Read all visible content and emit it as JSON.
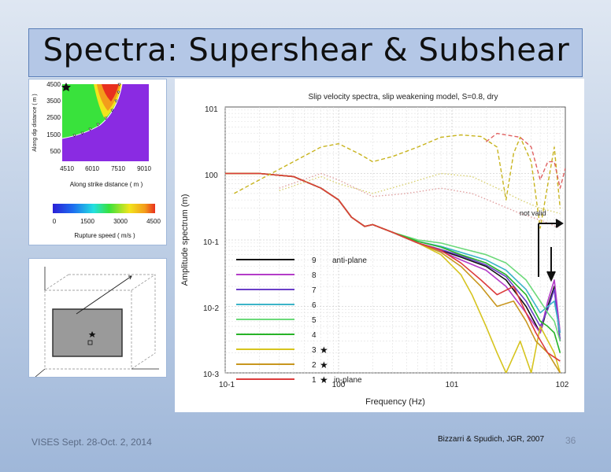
{
  "slide": {
    "title": "Spectra: Supershear & Subshear",
    "footer_left": "VISES Sept. 28-Oct. 2, 2014",
    "footer_right": "Bizzarri & Spudich, JGR, 2007",
    "page_number": "36"
  },
  "inset_map": {
    "ylabel": "Along dip distance ( m )",
    "xlabel": "Along strike distance ( m )",
    "yticks": [
      "4500",
      "3500",
      "2500",
      "1500",
      "500"
    ],
    "xticks": [
      "4510",
      "6010",
      "7510",
      "9010"
    ],
    "colorbar_label": "Rupture speed ( m/s )",
    "colorbar_ticks": [
      "0",
      "1500",
      "3000",
      "4500"
    ],
    "colors": {
      "purple": "#8a2be2",
      "green": "#39e23c",
      "yellow": "#f2e41c",
      "orange": "#f39c1b",
      "red": "#e8301e"
    }
  },
  "chart_data": {
    "type": "line",
    "title": "Slip velocity spectra, slip weakening model, S=0.8, dry",
    "xlabel": "Frequency (Hz)",
    "ylabel": "Amplitude spectrum (m)",
    "xscale": "log",
    "yscale": "log",
    "xlim": [
      0.1,
      100
    ],
    "ylim": [
      0.001,
      10
    ],
    "xtick_labels": [
      "10-1",
      "100",
      "101",
      "102"
    ],
    "ytick_labels": [
      "101",
      "100",
      "10-1",
      "10-2",
      "10-3"
    ],
    "grid": true,
    "annotation": "not valid",
    "legend_location": "lower-left",
    "legend": [
      {
        "label": "9",
        "suffix": "anti-plane",
        "star": false,
        "color": "#111111"
      },
      {
        "label": "8",
        "suffix": "",
        "star": false,
        "color": "#b43cc8"
      },
      {
        "label": "7",
        "suffix": "",
        "star": false,
        "color": "#6a3fc8"
      },
      {
        "label": "6",
        "suffix": "",
        "star": false,
        "color": "#3cb4c8"
      },
      {
        "label": "5",
        "suffix": "",
        "star": false,
        "color": "#6cd97a"
      },
      {
        "label": "4",
        "suffix": "",
        "star": false,
        "color": "#28b428"
      },
      {
        "label": "3",
        "suffix": "",
        "star": true,
        "color": "#d6c41e"
      },
      {
        "label": "2",
        "suffix": "",
        "star": true,
        "color": "#c8961e"
      },
      {
        "label": "1",
        "suffix": "in-plane",
        "star": true,
        "color": "#dc3c3c"
      }
    ],
    "series": [
      {
        "color": "#111111",
        "style": "solid",
        "x": [
          0.1,
          0.2,
          0.4,
          0.7,
          1.0,
          1.3,
          1.7,
          2.0,
          3,
          5,
          8,
          12,
          20,
          30,
          45,
          60,
          70,
          80,
          90
        ],
        "y": [
          1.0,
          1.0,
          0.9,
          0.6,
          0.4,
          0.22,
          0.16,
          0.17,
          0.13,
          0.09,
          0.07,
          0.055,
          0.04,
          0.025,
          0.01,
          0.004,
          0.01,
          0.02,
          0.003
        ]
      },
      {
        "color": "#b43cc8",
        "style": "solid",
        "x": [
          0.1,
          0.2,
          0.4,
          0.7,
          1.0,
          1.3,
          1.7,
          2.0,
          3,
          5,
          8,
          12,
          20,
          30,
          45,
          60,
          70,
          80,
          90
        ],
        "y": [
          1.0,
          1.0,
          0.9,
          0.6,
          0.4,
          0.22,
          0.16,
          0.17,
          0.13,
          0.09,
          0.068,
          0.05,
          0.035,
          0.02,
          0.008,
          0.004,
          0.012,
          0.025,
          0.004
        ]
      },
      {
        "color": "#6a3fc8",
        "style": "solid",
        "x": [
          0.1,
          0.2,
          0.4,
          0.7,
          1.0,
          1.3,
          1.7,
          2.0,
          3,
          5,
          8,
          12,
          20,
          30,
          45,
          60,
          70,
          80,
          90
        ],
        "y": [
          1.0,
          1.0,
          0.9,
          0.6,
          0.4,
          0.22,
          0.16,
          0.17,
          0.13,
          0.09,
          0.072,
          0.058,
          0.042,
          0.028,
          0.012,
          0.005,
          0.009,
          0.018,
          0.003
        ]
      },
      {
        "color": "#3cb4c8",
        "style": "solid",
        "x": [
          0.1,
          0.2,
          0.4,
          0.7,
          1.0,
          1.3,
          1.7,
          2.0,
          3,
          5,
          8,
          12,
          20,
          30,
          45,
          60,
          70,
          80,
          90
        ],
        "y": [
          1.0,
          1.0,
          0.9,
          0.6,
          0.4,
          0.22,
          0.16,
          0.17,
          0.13,
          0.095,
          0.08,
          0.065,
          0.05,
          0.035,
          0.018,
          0.008,
          0.01,
          0.012,
          0.004
        ]
      },
      {
        "color": "#6cd97a",
        "style": "solid",
        "x": [
          0.1,
          0.2,
          0.4,
          0.7,
          1.0,
          1.3,
          1.7,
          2.0,
          3,
          5,
          8,
          12,
          20,
          30,
          45,
          60,
          70,
          80,
          90
        ],
        "y": [
          1.0,
          1.0,
          0.9,
          0.6,
          0.4,
          0.22,
          0.16,
          0.17,
          0.13,
          0.1,
          0.09,
          0.075,
          0.06,
          0.045,
          0.025,
          0.012,
          0.008,
          0.006,
          0.003
        ]
      },
      {
        "color": "#28b428",
        "style": "solid",
        "x": [
          0.1,
          0.2,
          0.4,
          0.7,
          1.0,
          1.3,
          1.7,
          2.0,
          3,
          5,
          8,
          12,
          20,
          30,
          45,
          60,
          70,
          80,
          90
        ],
        "y": [
          1.0,
          1.0,
          0.9,
          0.6,
          0.4,
          0.22,
          0.16,
          0.17,
          0.13,
          0.095,
          0.078,
          0.06,
          0.045,
          0.03,
          0.015,
          0.006,
          0.005,
          0.004,
          0.002
        ]
      },
      {
        "color": "#d6c41e",
        "style": "solid",
        "x": [
          0.1,
          0.2,
          0.4,
          0.7,
          1.0,
          1.3,
          1.7,
          2.0,
          3,
          5,
          8,
          12,
          15,
          20,
          25,
          30,
          40,
          50,
          60,
          80,
          90
        ],
        "y": [
          1.0,
          1.0,
          0.9,
          0.6,
          0.4,
          0.22,
          0.16,
          0.17,
          0.13,
          0.09,
          0.06,
          0.03,
          0.015,
          0.005,
          0.002,
          0.001,
          0.003,
          0.001,
          0.005,
          0.002,
          0.001
        ]
      },
      {
        "color": "#c8961e",
        "style": "solid",
        "x": [
          0.1,
          0.2,
          0.4,
          0.7,
          1.0,
          1.3,
          1.7,
          2.0,
          3,
          5,
          8,
          12,
          18,
          25,
          35,
          45,
          55,
          70,
          90
        ],
        "y": [
          1.0,
          1.0,
          0.9,
          0.6,
          0.4,
          0.22,
          0.16,
          0.17,
          0.13,
          0.09,
          0.065,
          0.04,
          0.02,
          0.01,
          0.012,
          0.006,
          0.003,
          0.002,
          0.001
        ]
      },
      {
        "color": "#dc3c3c",
        "style": "solid",
        "x": [
          0.1,
          0.2,
          0.4,
          0.7,
          1.0,
          1.3,
          1.7,
          2.0,
          3,
          5,
          8,
          12,
          18,
          25,
          35,
          45,
          55,
          70,
          90
        ],
        "y": [
          1.0,
          1.0,
          0.9,
          0.6,
          0.4,
          0.22,
          0.16,
          0.17,
          0.13,
          0.09,
          0.07,
          0.045,
          0.025,
          0.015,
          0.02,
          0.008,
          0.004,
          0.002,
          0.0015
        ]
      },
      {
        "color": "#c8b41e",
        "style": "dashed",
        "x": [
          0.12,
          0.2,
          0.4,
          0.7,
          1.0,
          1.5,
          2.0,
          3,
          5,
          8,
          12,
          18,
          25,
          30,
          35,
          40,
          50,
          60,
          80,
          90
        ],
        "y": [
          0.5,
          0.8,
          1.5,
          2.5,
          2.8,
          2.0,
          1.5,
          1.8,
          2.5,
          3.5,
          3.8,
          3.6,
          2.5,
          0.4,
          2.0,
          3.5,
          1.5,
          0.15,
          2.5,
          0.3
        ]
      },
      {
        "color": "#e06060",
        "style": "dashed",
        "x": [
          20,
          25,
          30,
          40,
          50,
          60,
          70,
          80,
          90,
          100
        ],
        "y": [
          3.0,
          4.0,
          3.8,
          3.5,
          2.5,
          0.8,
          1.5,
          1.5,
          0.6,
          1.2
        ]
      },
      {
        "color": "#e0a0a0",
        "style": "dotted",
        "x": [
          0.3,
          0.7,
          1.0,
          2.0,
          4,
          8,
          15,
          25,
          40,
          60,
          90
        ],
        "y": [
          0.6,
          1.0,
          0.8,
          0.45,
          0.5,
          0.6,
          0.5,
          0.35,
          0.25,
          0.2,
          0.15
        ]
      },
      {
        "color": "#d8d070",
        "style": "dotted",
        "x": [
          0.3,
          0.7,
          1.0,
          2.0,
          4,
          8,
          15,
          25,
          40,
          60,
          90
        ],
        "y": [
          0.55,
          0.9,
          0.7,
          0.5,
          0.7,
          1.0,
          0.9,
          0.6,
          0.4,
          0.3,
          0.25
        ]
      }
    ]
  }
}
